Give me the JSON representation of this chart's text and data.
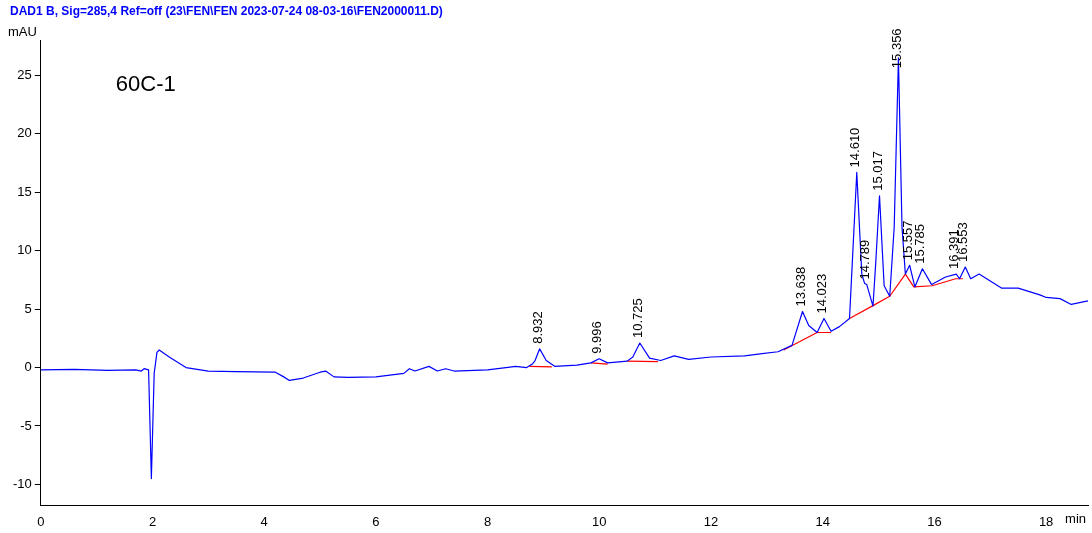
{
  "chart_data": {
    "type": "line",
    "title": "DAD1 B, Sig=285,4 Ref=off (23\\FEN\\FEN 2023-07-24 08-03-16\\FEN2000011.D)",
    "xlabel": "min",
    "ylabel": "mAU",
    "xlim": [
      0,
      18.75
    ],
    "ylim": [
      -11.8,
      28
    ],
    "xticks": [
      0,
      2,
      4,
      6,
      8,
      10,
      12,
      14,
      16,
      18
    ],
    "yticks": [
      -10,
      -5,
      0,
      5,
      10,
      15,
      20,
      25
    ],
    "marker": "none",
    "line_style": "solid",
    "series": [
      {
        "color": "#0000ff",
        "x": [
          0,
          0.6,
          1.2,
          1.7,
          1.8,
          1.85,
          1.93,
          1.98,
          2.03,
          2.08,
          2.12,
          2.3,
          2.6,
          3.0,
          3.5,
          4.2,
          4.35,
          4.45,
          4.7,
          5.0,
          5.1,
          5.25,
          5.5,
          6.0,
          6.5,
          6.6,
          6.7,
          6.95,
          7.1,
          7.25,
          7.4,
          8.0,
          8.5,
          8.7,
          8.8,
          8.85,
          8.932,
          9.05,
          9.2,
          9.6,
          9.85,
          9.996,
          10.15,
          10.5,
          10.6,
          10.725,
          10.9,
          11.1,
          11.34,
          11.6,
          12.0,
          12.6,
          13.2,
          13.45,
          13.638,
          13.75,
          13.9,
          14.023,
          14.15,
          14.3,
          14.48,
          14.53,
          14.61,
          14.7,
          14.75,
          14.789,
          14.9,
          14.95,
          15.017,
          15.1,
          15.2,
          15.28,
          15.356,
          15.42,
          15.48,
          15.557,
          15.65,
          15.785,
          15.95,
          16.2,
          16.391,
          16.45,
          16.553,
          16.65,
          16.8,
          17.2,
          17.5,
          17.9,
          18.0,
          18.25,
          18.45,
          18.75
        ],
        "values": [
          -0.2,
          -0.15,
          -0.25,
          -0.2,
          -0.3,
          -0.1,
          -0.2,
          -9.5,
          -0.5,
          1.3,
          1.5,
          0.9,
          0.0,
          -0.3,
          -0.35,
          -0.4,
          -0.8,
          -1.1,
          -0.9,
          -0.4,
          -0.3,
          -0.8,
          -0.85,
          -0.8,
          -0.5,
          -0.1,
          -0.3,
          0.1,
          -0.3,
          -0.1,
          -0.3,
          -0.2,
          0.1,
          0.0,
          0.3,
          0.6,
          1.6,
          0.6,
          0.1,
          0.2,
          0.4,
          0.75,
          0.4,
          0.55,
          0.9,
          2.1,
          0.8,
          0.6,
          1.0,
          0.7,
          0.9,
          1.0,
          1.35,
          1.9,
          4.8,
          3.6,
          3.0,
          4.2,
          3.1,
          3.5,
          4.2,
          9.0,
          16.7,
          8.0,
          7.2,
          7.1,
          5.25,
          9.0,
          14.7,
          7.0,
          6.1,
          12.0,
          26.5,
          12.0,
          8.0,
          8.75,
          6.9,
          8.45,
          7.1,
          7.75,
          8.0,
          7.6,
          8.6,
          7.6,
          8.0,
          6.8,
          6.8,
          6.2,
          6.0,
          5.9,
          5.4,
          5.7
        ]
      },
      {
        "color": "#ff0000",
        "x": [
          8.75,
          9.15,
          9.5,
          9.85,
          10.15,
          10.3,
          10.5,
          11.05,
          12.0,
          13.3,
          13.9,
          14.15,
          14.3,
          14.48,
          14.9,
          15.2,
          15.48,
          15.63,
          15.96,
          16.38,
          16.51
        ],
        "values": [
          0.1,
          0.05,
          null,
          0.4,
          0.3,
          null,
          0.55,
          0.5,
          null,
          1.5,
          3.0,
          3.0,
          null,
          4.2,
          5.3,
          6.1,
          8.0,
          6.9,
          7.0,
          7.6,
          7.6
        ]
      }
    ],
    "annotations": [
      "60C-1",
      {
        "text": "8.932",
        "x": 8.932,
        "y": 1.6
      },
      {
        "text": "9.996",
        "x": 9.996,
        "y": 0.75
      },
      {
        "text": "10.725",
        "x": 10.725,
        "y": 2.1
      },
      {
        "text": "13.638",
        "x": 13.638,
        "y": 4.8
      },
      {
        "text": "14.023",
        "x": 14.023,
        "y": 4.2
      },
      {
        "text": "14.610",
        "x": 14.61,
        "y": 16.7
      },
      {
        "text": "14.789",
        "x": 14.789,
        "y": 7.1
      },
      {
        "text": "15.017",
        "x": 15.017,
        "y": 14.7
      },
      {
        "text": "15.356",
        "x": 15.356,
        "y": 26.5
      },
      {
        "text": "15.557",
        "x": 15.557,
        "y": 8.75
      },
      {
        "text": "15.785",
        "x": 15.785,
        "y": 8.45
      },
      {
        "text": "16.391",
        "x": 16.391,
        "y": 8.0
      },
      {
        "text": "16.553",
        "x": 16.553,
        "y": 8.6
      }
    ]
  }
}
